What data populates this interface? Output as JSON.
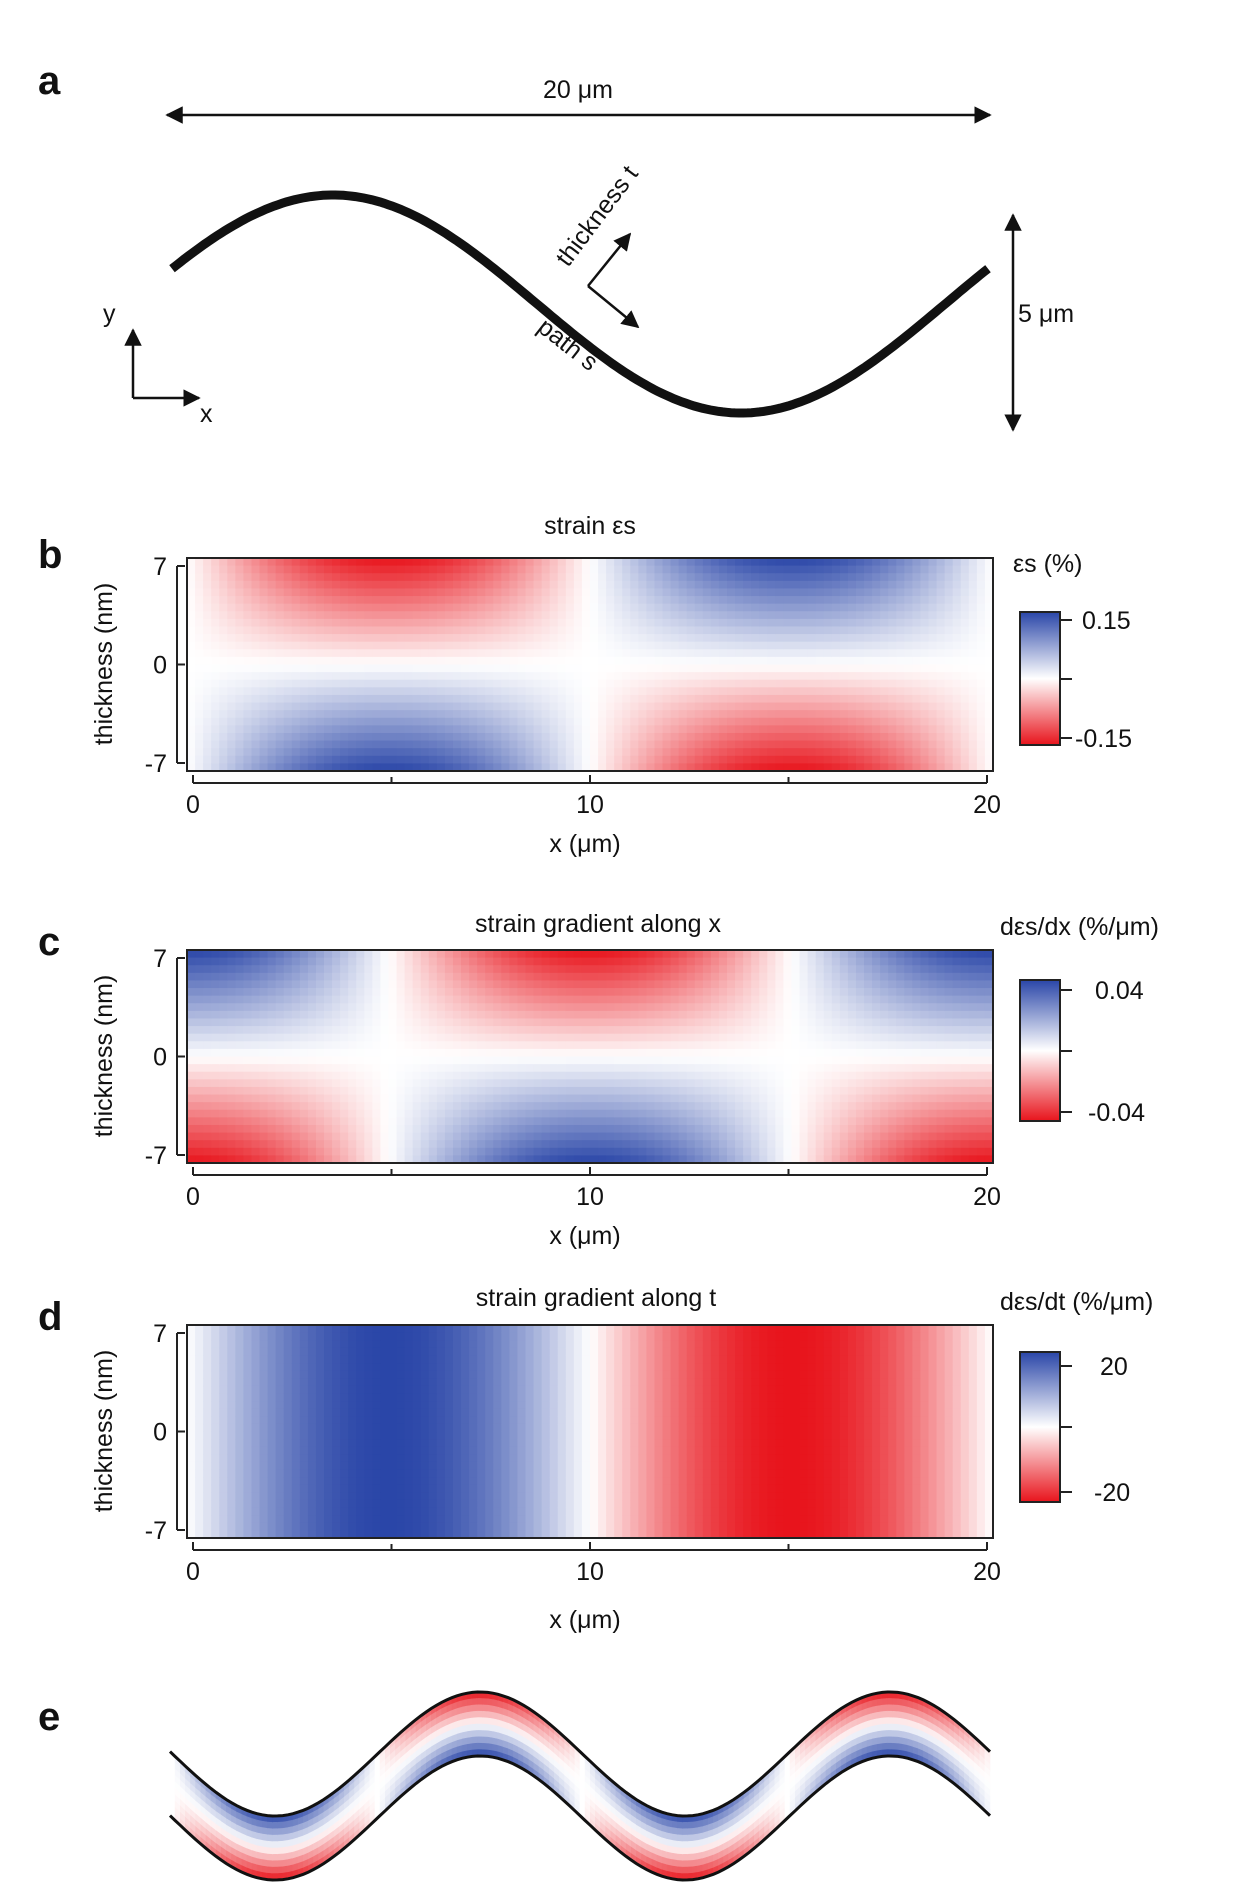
{
  "panel_a": {
    "letter": "a",
    "width_label": "20 μm",
    "height_label": "5 μm",
    "thickness_label": "thickness t",
    "path_label": "path s",
    "axis_x": "x",
    "axis_y": "y"
  },
  "panel_e": {
    "letter": "e"
  },
  "colors": {
    "positive": "#2a46a8",
    "negative": "#e8141c",
    "zero": "#ffffff",
    "line": "#111111"
  },
  "chart_data": [
    {
      "type": "heatmap",
      "letter": "b",
      "title": "strain εs",
      "xlabel": "x (μm)",
      "ylabel": "thickness (nm)",
      "xlim": [
        0,
        20
      ],
      "ylim": [
        -7,
        7
      ],
      "xticks": [
        0,
        10,
        20
      ],
      "xminor": [
        5,
        15
      ],
      "yticks": [
        7,
        0,
        -7
      ],
      "field": "-sin(2πx/20)·(t/7)",
      "colorbar": {
        "title": "εs (%)",
        "max": 0.15,
        "min": -0.15,
        "max_label": "0.15",
        "min_label": "-0.15"
      }
    },
    {
      "type": "heatmap",
      "letter": "c",
      "title": "strain gradient along x",
      "xlabel": "x (μm)",
      "ylabel": "thickness (nm)",
      "xlim": [
        0,
        20
      ],
      "ylim": [
        -7,
        7
      ],
      "xticks": [
        0,
        10,
        20
      ],
      "xminor": [
        5,
        15
      ],
      "yticks": [
        7,
        0,
        -7
      ],
      "field": "cos(2πx/20)·(t/7)",
      "colorbar": {
        "title": "dεs/dx (%/μm)",
        "max": 0.04,
        "min": -0.04,
        "max_label": "0.04",
        "min_label": "-0.04"
      }
    },
    {
      "type": "heatmap",
      "letter": "d",
      "title": "strain gradient along t",
      "xlabel": "x (μm)",
      "ylabel": "thickness (nm)",
      "xlim": [
        0,
        20
      ],
      "ylim": [
        -7,
        7
      ],
      "xticks": [
        0,
        10,
        20
      ],
      "xminor": [
        5,
        15
      ],
      "yticks": [
        7,
        0,
        -7
      ],
      "field": "sin(2πx/20)",
      "colorbar": {
        "title": "dεs/dt (%/μm)",
        "max": 20,
        "min": -20,
        "max_label": "20",
        "min_label": "-20"
      }
    }
  ]
}
